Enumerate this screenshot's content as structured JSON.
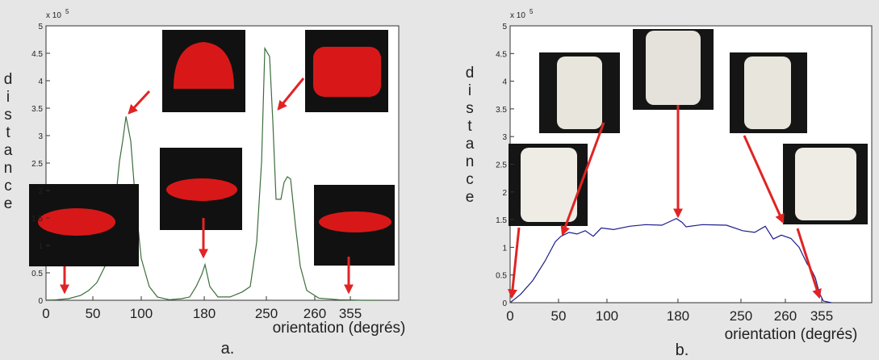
{
  "chart_data": [
    {
      "type": "line",
      "caption": "a.",
      "x_label": "orientation (degrés)",
      "y_label": "distance",
      "y_multiplier": "x 10",
      "y_multiplier_exponent": "5",
      "xlim": [
        0,
        360
      ],
      "ylim": [
        0,
        5
      ],
      "xticks": [
        {
          "value": 0,
          "label": "0"
        },
        {
          "value": 47.8,
          "label": "50"
        },
        {
          "value": 97.2,
          "label": "100"
        },
        {
          "value": 161.5,
          "label": "180"
        },
        {
          "value": 224.9,
          "label": "250"
        },
        {
          "value": 274.3,
          "label": "260"
        },
        {
          "value": 310.6,
          "label": "355"
        }
      ],
      "yticks": [
        0,
        0.5,
        1,
        1.5,
        2,
        2.5,
        3,
        3.5,
        4,
        4.5,
        5
      ],
      "x": [
        0,
        10.7,
        23.1,
        35.4,
        43.7,
        51.9,
        60.2,
        68.4,
        75.0,
        78.3,
        81.6,
        86.5,
        91.4,
        97.2,
        105.4,
        113.7,
        126.0,
        138.4,
        146.6,
        153.2,
        159.0,
        162.3,
        167.2,
        175.5,
        187.8,
        200.2,
        208.4,
        215.0,
        220.0,
        223.3,
        228.2,
        231.5,
        234.8,
        239.7,
        243.0,
        246.3,
        249.6,
        254.6,
        259.5,
        266.1,
        278.4,
        299.0,
        323.8,
        340.0
      ],
      "series": [
        {
          "color": "#3b6e3b",
          "values": [
            0,
            0.01,
            0.03,
            0.09,
            0.18,
            0.32,
            0.62,
            1.35,
            2.53,
            2.9,
            3.35,
            2.9,
            1.79,
            0.76,
            0.25,
            0.06,
            0.01,
            0.03,
            0.06,
            0.25,
            0.47,
            0.65,
            0.25,
            0.06,
            0.06,
            0.15,
            0.25,
            1.06,
            2.53,
            4.59,
            4.44,
            3.26,
            1.84,
            1.84,
            2.15,
            2.25,
            2.21,
            1.35,
            0.62,
            0.18,
            0.04,
            0.01,
            0,
            0
          ]
        }
      ]
    },
    {
      "type": "line",
      "caption": "b.",
      "x_label": "orientation (degrés)",
      "y_label": "distance",
      "y_multiplier": "x 10",
      "y_multiplier_exponent": "5",
      "xlim": [
        0,
        360
      ],
      "ylim": [
        0,
        5
      ],
      "xticks": [
        {
          "value": 0,
          "label": "0"
        },
        {
          "value": 48.2,
          "label": "50"
        },
        {
          "value": 96.4,
          "label": "100"
        },
        {
          "value": 167.1,
          "label": "180"
        },
        {
          "value": 229.8,
          "label": "250"
        },
        {
          "value": 274.0,
          "label": "260"
        },
        {
          "value": 310.2,
          "label": "355"
        }
      ],
      "yticks": [
        0,
        0.5,
        1,
        1.5,
        2,
        2.5,
        3,
        3.5,
        4,
        4.5,
        5
      ],
      "x": [
        0,
        10.4,
        22.5,
        34.6,
        45.0,
        50.6,
        58.7,
        66.7,
        74.7,
        82.8,
        90.8,
        102.9,
        118.9,
        135.0,
        151.1,
        160.7,
        165.5,
        171.2,
        175.2,
        191.3,
        215.4,
        231.4,
        243.5,
        254.0,
        262.0,
        270.0,
        279.6,
        287.7,
        295.7,
        299.7,
        303.8,
        307.8,
        311.8,
        319.8
      ],
      "series": [
        {
          "color": "#1c1c8c",
          "values": [
            0,
            0.15,
            0.4,
            0.75,
            1.1,
            1.2,
            1.27,
            1.24,
            1.3,
            1.2,
            1.35,
            1.32,
            1.38,
            1.41,
            1.4,
            1.48,
            1.52,
            1.45,
            1.37,
            1.41,
            1.4,
            1.3,
            1.27,
            1.38,
            1.15,
            1.22,
            1.16,
            1.0,
            0.7,
            0.6,
            0.45,
            0.18,
            0.03,
            0
          ]
        }
      ]
    }
  ]
}
